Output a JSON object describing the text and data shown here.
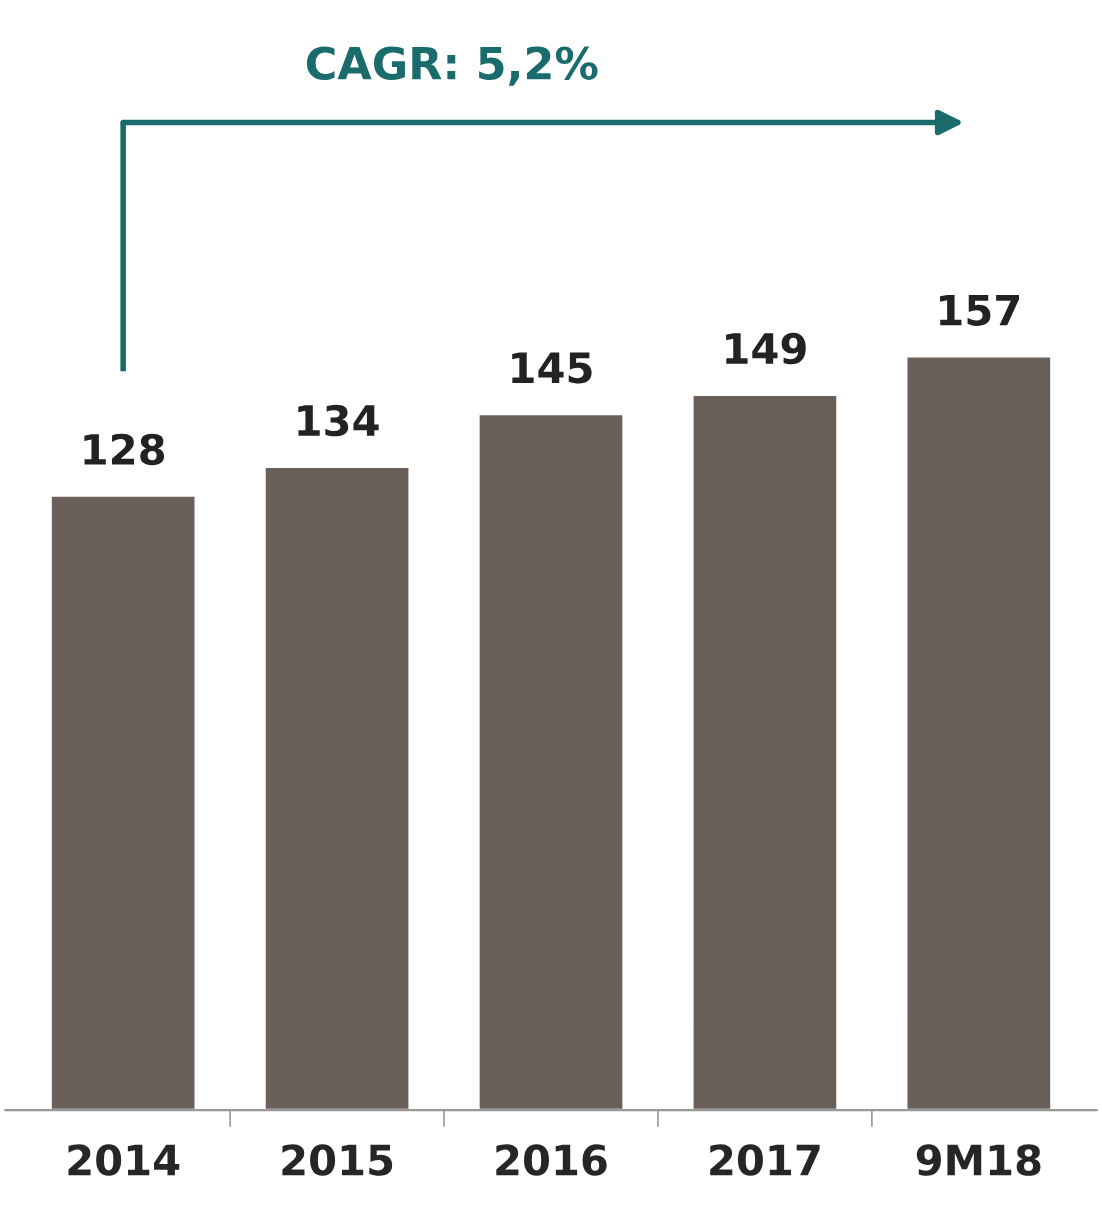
{
  "chart_data": {
    "type": "bar",
    "categories": [
      "2014",
      "2015",
      "2016",
      "2017",
      "9M18"
    ],
    "series": [
      {
        "color": "#6b5f5a",
        "values": [
          128,
          134,
          145,
          149,
          157
        ]
      }
    ],
    "data_labels": true,
    "annotations": [
      "CAGR: 5,2%"
    ]
  }
}
